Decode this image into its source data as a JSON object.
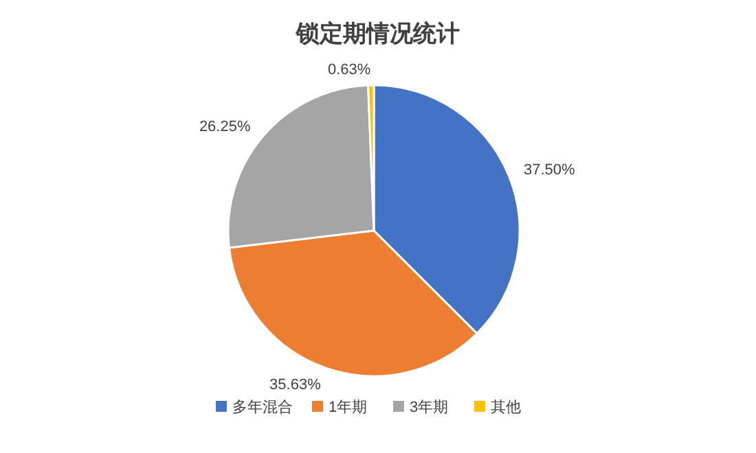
{
  "chart_data": {
    "type": "pie",
    "title": "锁定期情况统计",
    "categories": [
      "多年混合",
      "1年期",
      "3年期",
      "其他"
    ],
    "values": [
      37.5,
      35.63,
      26.25,
      0.63
    ],
    "value_labels": [
      "37.50%",
      "35.63%",
      "26.25%",
      "0.63%"
    ],
    "colors": [
      "#4472c4",
      "#ed7d31",
      "#a5a5a5",
      "#ffc000"
    ],
    "legend": "bottom"
  }
}
